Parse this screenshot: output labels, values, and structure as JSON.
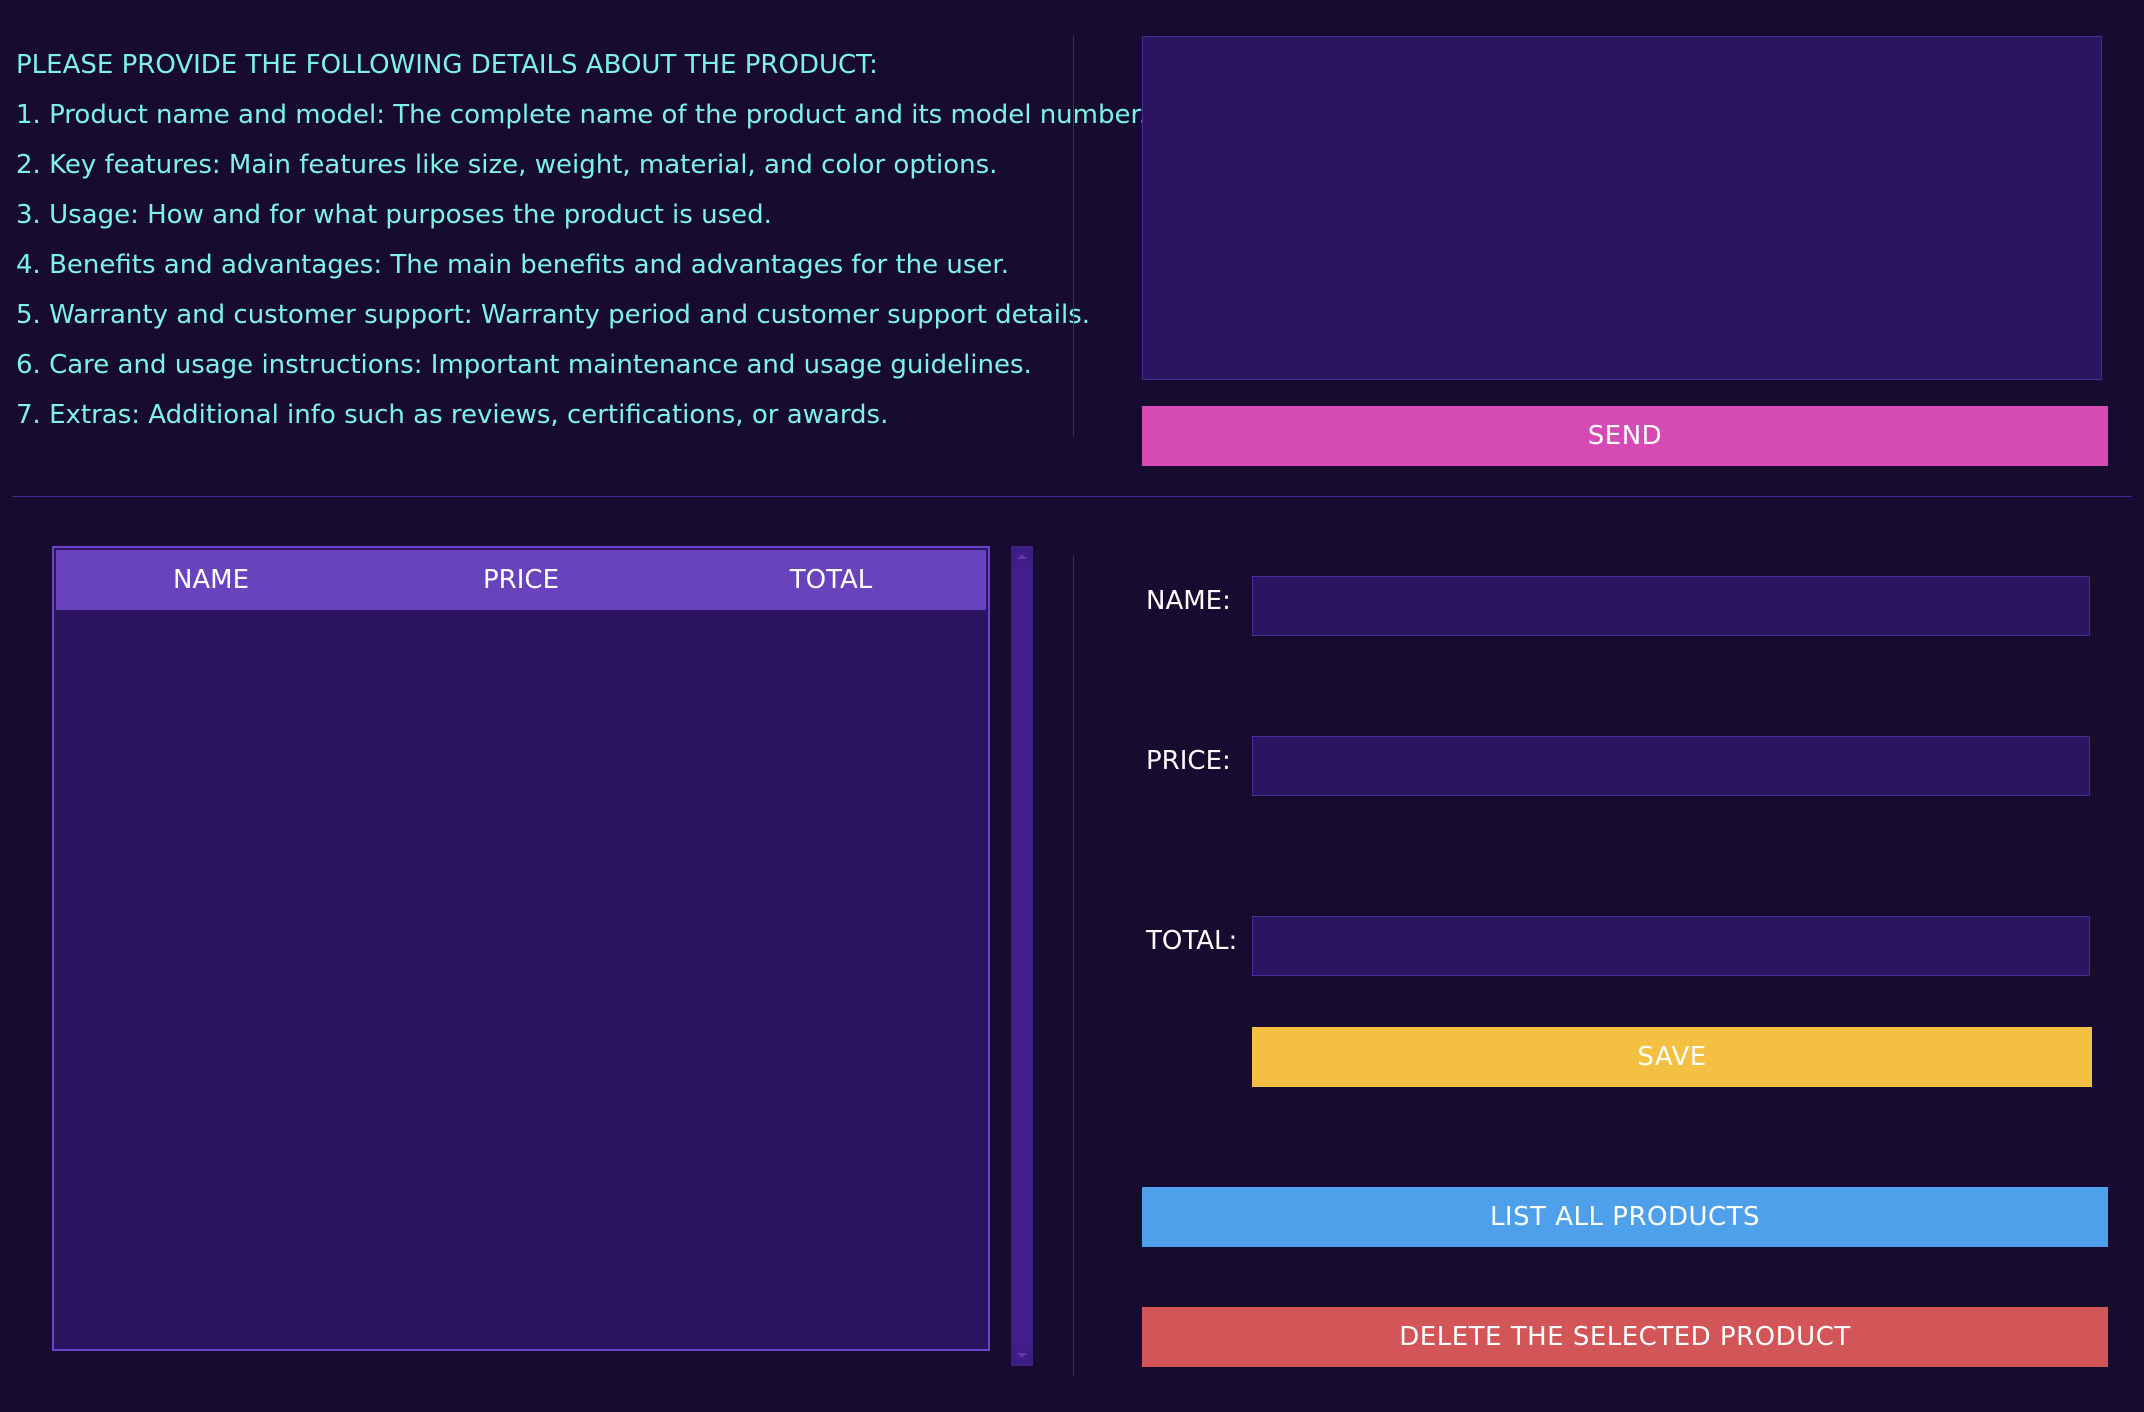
{
  "instructions": {
    "heading": "PLEASE PROVIDE THE FOLLOWING DETAILS ABOUT THE PRODUCT:",
    "items": [
      "1. Product name and model: The complete name of the product and its model number.",
      "2. Key features: Main features like size, weight, material, and color options.",
      "3. Usage: How and for what purposes the product is used.",
      "4. Benefits and advantages: The main benefits and advantages for the user.",
      "5. Warranty and customer support: Warranty period and customer support details.",
      "6. Care and usage instructions: Important maintenance and usage guidelines.",
      "7. Extras: Additional info such as reviews, certifications, or awards."
    ]
  },
  "message": {
    "value": ""
  },
  "buttons": {
    "send": "SEND",
    "save": "SAVE",
    "list_all": "LIST ALL PRODUCTS",
    "delete": "DELETE THE SELECTED PRODUCT"
  },
  "table": {
    "columns": [
      "NAME",
      "PRICE",
      "TOTAL"
    ],
    "rows": []
  },
  "form": {
    "name_label": "NAME:",
    "price_label": "PRICE:",
    "total_label": "TOTAL:",
    "name_value": "",
    "price_value": "",
    "total_value": ""
  },
  "colors": {
    "background": "#170b30",
    "panel": "#2c1460",
    "instruction_text": "#7ef2e4",
    "send": "#d54ab4",
    "save": "#f4c042",
    "list": "#4ea0ea",
    "delete": "#d25558",
    "table_header": "#6843bd"
  }
}
